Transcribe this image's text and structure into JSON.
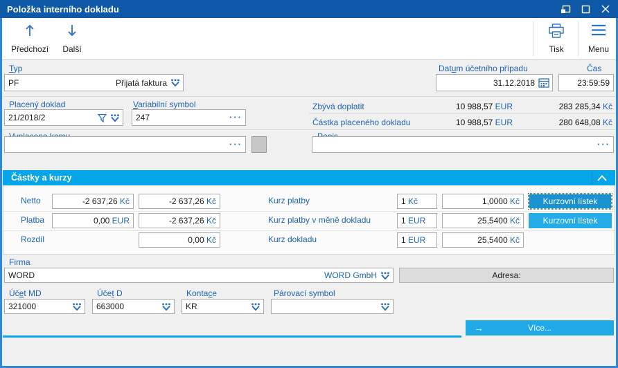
{
  "titlebar": {
    "title": "Položka interního dokladu"
  },
  "toolbar": {
    "prev_label": "Předchozí",
    "next_label": "Další",
    "print_label": "Tisk",
    "menu_label": "Menu"
  },
  "form": {
    "typ": {
      "label": "Typ",
      "code": "PF",
      "name": "Přijatá faktura"
    },
    "datum": {
      "label": "Datum účetního případu",
      "value": "31.12.2018"
    },
    "cas": {
      "label": "Čas",
      "value": "23:59:59"
    },
    "placeny_doklad": {
      "label": "Placený doklad",
      "value": "21/2018/2"
    },
    "variabilni_symbol": {
      "label": "Variabilní symbol",
      "value": "247"
    },
    "zbyva_doplatit": {
      "label": "Zbývá doplatit",
      "eur_amount": "10 988,57",
      "eur_cur": "EUR",
      "czk_amount": "283 285,34",
      "czk_cur": "Kč"
    },
    "castka_placeneho": {
      "label": "Částka placeného dokladu",
      "eur_amount": "10 988,57",
      "eur_cur": "EUR",
      "czk_amount": "280 648,08",
      "czk_cur": "Kč"
    },
    "vyplaceno_komu": {
      "label": "Vyplaceno komu",
      "value": ""
    },
    "popis": {
      "label": "Popis",
      "value": ""
    }
  },
  "amounts_section": {
    "title": "Částky a kurzy",
    "netto": {
      "label": "Netto",
      "a1": "-2 637,26",
      "c1": "Kč",
      "a2": "-2 637,26",
      "c2": "Kč"
    },
    "platba": {
      "label": "Platba",
      "a1": "0,00",
      "c1": "EUR",
      "a2": "-2 637,26",
      "c2": "Kč"
    },
    "rozdil": {
      "label": "Rozdíl",
      "a2": "0,00",
      "c2": "Kč"
    },
    "kurz_platby": {
      "label": "Kurz platby",
      "unit_n": "1",
      "unit_c": "Kč",
      "rate_n": "1,0000",
      "rate_c": "Kč",
      "button": "Kurzovní lístek"
    },
    "kurz_platby_mena": {
      "label": "Kurz platby v měně dokladu",
      "unit_n": "1",
      "unit_c": "EUR",
      "rate_n": "25,5400",
      "rate_c": "Kč",
      "button": "Kurzovní lístek"
    },
    "kurz_dokladu": {
      "label": "Kurz dokladu",
      "unit_n": "1",
      "unit_c": "EUR",
      "rate_n": "25,5400",
      "rate_c": "Kč"
    }
  },
  "firma_block": {
    "firma": {
      "label": "Firma",
      "code": "WORD",
      "name": "WORD GmbH"
    },
    "adresa_label": "Adresa:"
  },
  "accounts": {
    "ucet_md": {
      "label": "Účet MD",
      "value": "321000"
    },
    "ucet_d": {
      "label": "Účet D",
      "value": "663000"
    },
    "kontace": {
      "label": "Kontace",
      "value": "KR"
    },
    "parovaci_symbol": {
      "label": "Párovací symbol",
      "value": ""
    }
  },
  "footer": {
    "more_label": "Více...",
    "arrow": "→"
  },
  "icons": {
    "ellipsis": "···"
  },
  "colors": {
    "titlebar": "#0e58a8",
    "frame": "#2c87dd",
    "section_header": "#04a5e9",
    "button_cyan": "#24ace9",
    "button_cyan_focused": "#1a91d0",
    "label_blue": "#1e63b0",
    "icon_blue": "#2b6fc2"
  }
}
